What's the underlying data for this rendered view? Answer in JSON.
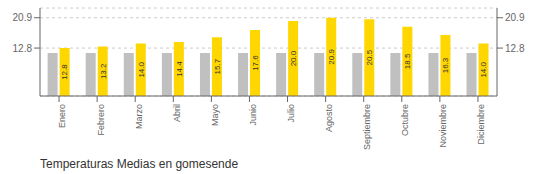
{
  "chart_data": {
    "type": "bar",
    "title": "Temperaturas Medias en gomesende",
    "categories": [
      "Enero",
      "Febrero",
      "Marzo",
      "Abril",
      "Mayo",
      "Junio",
      "Julio",
      "Agosto",
      "Septiembre",
      "Octubre",
      "Noviembre",
      "Diciembre"
    ],
    "series": [
      {
        "color": "#C0C0C0",
        "values": [
          11.5,
          11.5,
          11.5,
          11.5,
          11.5,
          11.5,
          11.5,
          11.5,
          11.5,
          11.5,
          11.5,
          11.5
        ]
      },
      {
        "color": "#FFD700",
        "values": [
          12.8,
          13.2,
          14.0,
          14.4,
          15.7,
          17.6,
          20.0,
          20.9,
          20.5,
          18.5,
          16.3,
          14.0
        ],
        "value_labels": [
          "12.8",
          "13.2",
          "14.0",
          "14.4",
          "15.7",
          "17.6",
          "20.0",
          "20.9",
          "20.5",
          "18.5",
          "16.3",
          "14.0"
        ],
        "data_labels": true
      }
    ],
    "ylim": [
      0,
      23.5
    ],
    "yticks": [
      12.8,
      20.9
    ],
    "y2lim": [
      0,
      23.5
    ],
    "y2ticks": [
      12.8,
      20.9
    ],
    "grid": true
  }
}
